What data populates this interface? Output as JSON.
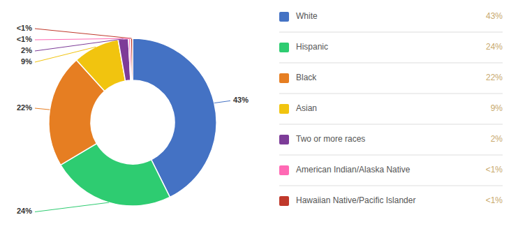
{
  "chart_data": {
    "type": "donut",
    "categories": [
      "White",
      "Hispanic",
      "Black",
      "Asian",
      "Two or more races",
      "American Indian/Alaska Native",
      "Hawaiian Native/Pacific Islander"
    ],
    "values": [
      43,
      24,
      22,
      9,
      2,
      0.4,
      0.4
    ],
    "value_labels": [
      "43%",
      "24%",
      "22%",
      "9%",
      "2%",
      "<1%",
      "<1%"
    ],
    "colors": [
      "#4472C4",
      "#2ECC71",
      "#E67E22",
      "#F1C40F",
      "#7D3C98",
      "#FF69B4",
      "#C0392B"
    ],
    "data_labels": true,
    "legend": "right"
  }
}
